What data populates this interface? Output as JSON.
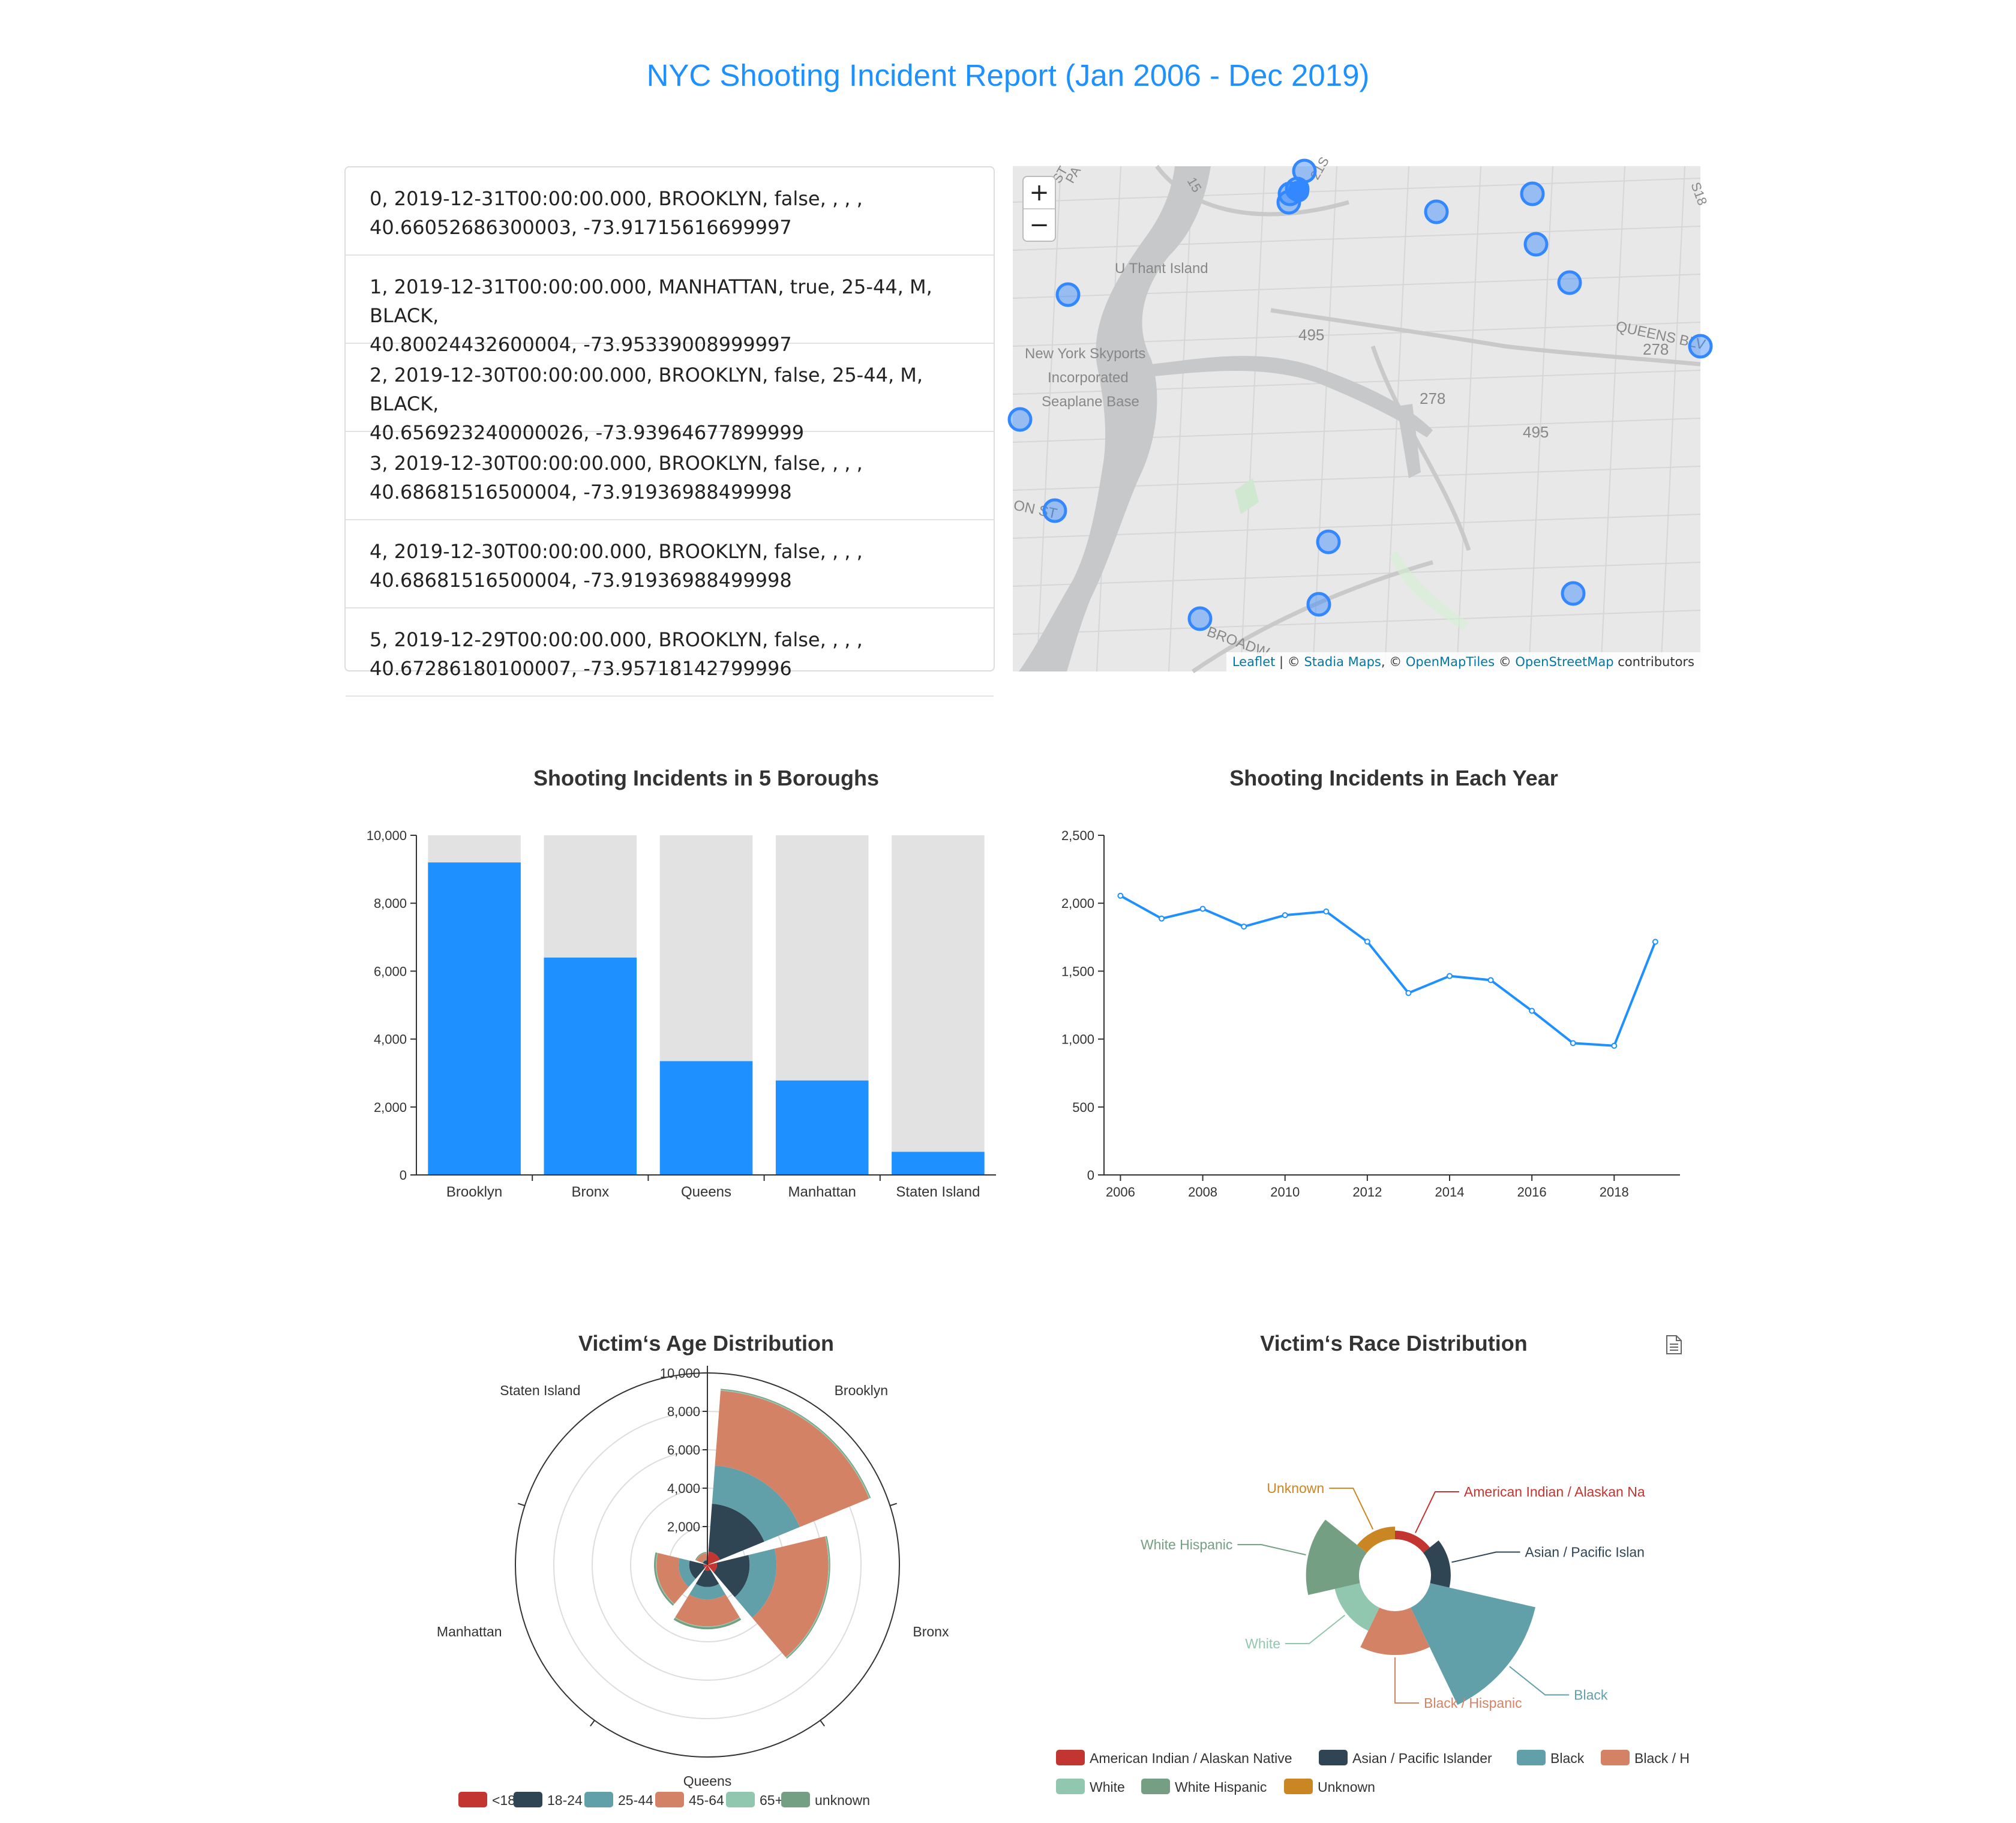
{
  "page": {
    "title": "NYC Shooting Incident Report (Jan 2006 - Dec 2019)"
  },
  "incidents": [
    {
      "line1": "0, 2019-12-31T00:00:00.000, BROOKLYN, false, , , ,",
      "line2": "40.66052686300003, -73.91715616699997"
    },
    {
      "line1": "1, 2019-12-31T00:00:00.000, MANHATTAN, true, 25-44, M, BLACK,",
      "line2": "40.80024432600004, -73.95339008999997"
    },
    {
      "line1": "2, 2019-12-30T00:00:00.000, BROOKLYN, false, 25-44, M, BLACK,",
      "line2": "40.656923240000026, -73.93964677899999"
    },
    {
      "line1": "3, 2019-12-30T00:00:00.000, BROOKLYN, false, , , ,",
      "line2": "40.68681516500004, -73.91936988499998"
    },
    {
      "line1": "4, 2019-12-30T00:00:00.000, BROOKLYN, false, , , ,",
      "line2": "40.68681516500004, -73.91936988499998"
    },
    {
      "line1": "5, 2019-12-29T00:00:00.000, BROOKLYN, false, , , ,",
      "line2": "40.67286180100007, -73.95718142799996"
    }
  ],
  "map": {
    "zoom_in": "+",
    "zoom_out": "−",
    "labels": {
      "u_thant": "U Thant Island",
      "skyports1": "New York Skyports",
      "skyports2": "Incorporated",
      "skyports3": "Seaplane Base",
      "r495a": "495",
      "r495b": "495",
      "r278a": "278",
      "r278b": "278",
      "queens_blvd": "QUEENS BLV",
      "broadway": "BROADW",
      "on_st": "ON ST",
      "pa": "PA",
      "st": "ST",
      "n15": "15",
      "n21": "21S",
      "s8": "S18"
    },
    "attribution": {
      "leaflet": "Leaflet",
      "sep1": " | © ",
      "stadia": "Stadia Maps",
      "sep2": ", © ",
      "omt": "OpenMapTiles",
      "sep3": " © ",
      "osm": "OpenStreetMap",
      "tail": " contributors"
    },
    "accent": "#3388ff"
  },
  "chart_data": [
    {
      "type": "bar",
      "title": "Shooting Incidents in 5 Boroughs",
      "categories": [
        "Brooklyn",
        "Bronx",
        "Queens",
        "Manhattan",
        "Staten Island"
      ],
      "values": [
        9200,
        6400,
        3350,
        2780,
        680
      ],
      "background_max": 10000,
      "ylim": [
        0,
        10000
      ],
      "yticks": [
        0,
        2000,
        4000,
        6000,
        8000,
        10000
      ],
      "ytick_labels": [
        "0",
        "2,000",
        "4,000",
        "6,000",
        "8,000",
        "10,000"
      ],
      "color": "#1e90ff",
      "background_color": "#e2e2e2"
    },
    {
      "type": "line",
      "title": "Shooting Incidents in Each Year",
      "x": [
        2006,
        2007,
        2008,
        2009,
        2010,
        2011,
        2012,
        2013,
        2014,
        2015,
        2016,
        2017,
        2018,
        2019
      ],
      "values": [
        2055,
        1887,
        1959,
        1828,
        1912,
        1939,
        1717,
        1339,
        1464,
        1434,
        1208,
        970,
        951,
        1716
      ],
      "xticks": [
        "2006",
        "2008",
        "2010",
        "2012",
        "2014",
        "2016",
        "2018"
      ],
      "ylim": [
        0,
        2500
      ],
      "yticks": [
        0,
        500,
        1000,
        1500,
        2000,
        2500
      ],
      "ytick_labels": [
        "0",
        "500",
        "1,000",
        "1,500",
        "2,000",
        "2,500"
      ],
      "color": "#1e90ff"
    },
    {
      "type": "polar-bar",
      "title": "Victim‘s Age Distribution",
      "categories": [
        "Brooklyn",
        "Bronx",
        "Queens",
        "Manhattan",
        "Staten Island"
      ],
      "rlim": [
        0,
        10000
      ],
      "rticks": [
        "2,000",
        "4,000",
        "6,000",
        "8,000",
        "10,000"
      ],
      "series": [
        {
          "name": "<18",
          "color": "#c23531",
          "values": [
            700,
            500,
            300,
            200,
            50
          ]
        },
        {
          "name": "18-24",
          "color": "#2f4554",
          "values": [
            3200,
            2200,
            1150,
            950,
            250
          ]
        },
        {
          "name": "25-44",
          "color": "#61a0a8",
          "values": [
            5200,
            3600,
            1800,
            1500,
            300
          ]
        },
        {
          "name": "45-64",
          "color": "#d48265",
          "values": [
            9100,
            6300,
            3200,
            2650,
            620
          ]
        },
        {
          "name": "65+",
          "color": "#91c7ae",
          "values": [
            9150,
            6350,
            3240,
            2690,
            630
          ]
        },
        {
          "name": "unknown",
          "color": "#749f83",
          "values": [
            9200,
            6400,
            3350,
            2780,
            680
          ]
        }
      ]
    },
    {
      "type": "pie",
      "title": "Victim‘s Race Distribution",
      "slices": [
        {
          "name": "American Indian / Alaskan Native",
          "label": "American Indian / Alaskan Na",
          "value": 10,
          "color": "#c23531"
        },
        {
          "name": "Asian / Pacific Islander",
          "label": "Asian / Pacific Islan",
          "value": 290,
          "color": "#2f4554"
        },
        {
          "name": "Black",
          "label": "Black",
          "value": 16000,
          "color": "#61a0a8"
        },
        {
          "name": "Black Hispanic",
          "label": "Black / Hispanic",
          "legend": "Black / H",
          "value": 2200,
          "color": "#d48265"
        },
        {
          "name": "White",
          "label": "White",
          "value": 600,
          "color": "#91c7ae"
        },
        {
          "name": "White Hispanic",
          "label": "White Hispanic",
          "value": 3400,
          "color": "#749f83"
        },
        {
          "name": "Unknown",
          "label": "Unknown",
          "value": 65,
          "color": "#ca8622"
        }
      ]
    }
  ]
}
